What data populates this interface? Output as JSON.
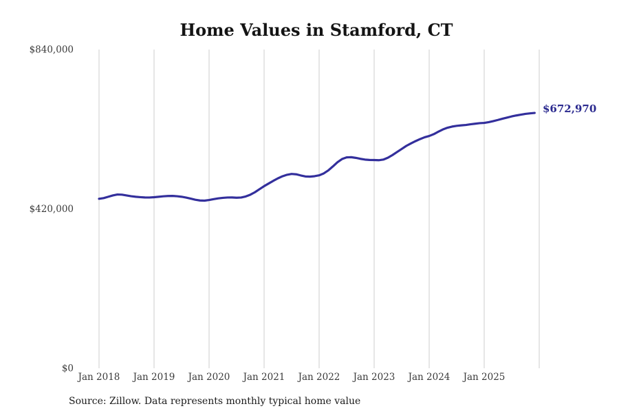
{
  "page": {
    "title": "Home Values in Stamford, CT",
    "end_label": "$672,970",
    "source_note": "Source: Zillow. Data represents monthly typical home value"
  },
  "colors": {
    "line": "#332f9c",
    "end_label": "#2b2a8f",
    "gridline": "#cccccc",
    "title": "#141414",
    "tick": "#3a3a3a",
    "source": "#1a1a1a",
    "background": "#ffffff"
  },
  "chart_data": {
    "type": "line",
    "title": "Home Values in Stamford, CT",
    "xlabel": "",
    "ylabel": "",
    "frequency": "monthly",
    "x_start": "Jan 2018",
    "x_end": "Dec 2025",
    "ylim": [
      0,
      840000
    ],
    "grid": "vertical-only",
    "legend": "none",
    "end_annotation": "$672,970",
    "x_tick_labels": [
      "Jan 2018",
      "Jan 2019",
      "Jan 2020",
      "Jan 2021",
      "Jan 2022",
      "Jan 2023",
      "Jan 2024",
      "Jan 2025"
    ],
    "y_ticks": [
      {
        "value": 840000,
        "label": "$840,000"
      },
      {
        "value": 420000,
        "label": "$420,000"
      },
      {
        "value": 0,
        "label": "$0"
      }
    ],
    "series": [
      {
        "name": "Typical home value",
        "values": [
          446700,
          448500,
          452000,
          455500,
          458000,
          457500,
          455500,
          453500,
          452000,
          451000,
          450200,
          450000,
          450800,
          452000,
          453200,
          454000,
          454200,
          453500,
          452000,
          449800,
          447000,
          444200,
          442200,
          441800,
          443500,
          445800,
          447800,
          449200,
          450000,
          450200,
          449500,
          450000,
          452800,
          457500,
          464000,
          472000,
          480000,
          487000,
          494000,
          500500,
          506000,
          510000,
          512200,
          511200,
          508200,
          505500,
          505000,
          506200,
          508500,
          513500,
          521500,
          532000,
          543000,
          551500,
          555800,
          556300,
          554500,
          552000,
          550000,
          549000,
          548800,
          548300,
          550000,
          555000,
          562000,
          570000,
          578000,
          586000,
          592500,
          598500,
          604000,
          608800,
          612200,
          617000,
          623500,
          629500,
          634000,
          637000,
          639000,
          640200,
          641200,
          643000,
          644500,
          646000,
          646700,
          648800,
          651500,
          654500,
          657800,
          660800,
          663800,
          666300,
          668500,
          670500,
          671900,
          672970
        ]
      }
    ]
  }
}
